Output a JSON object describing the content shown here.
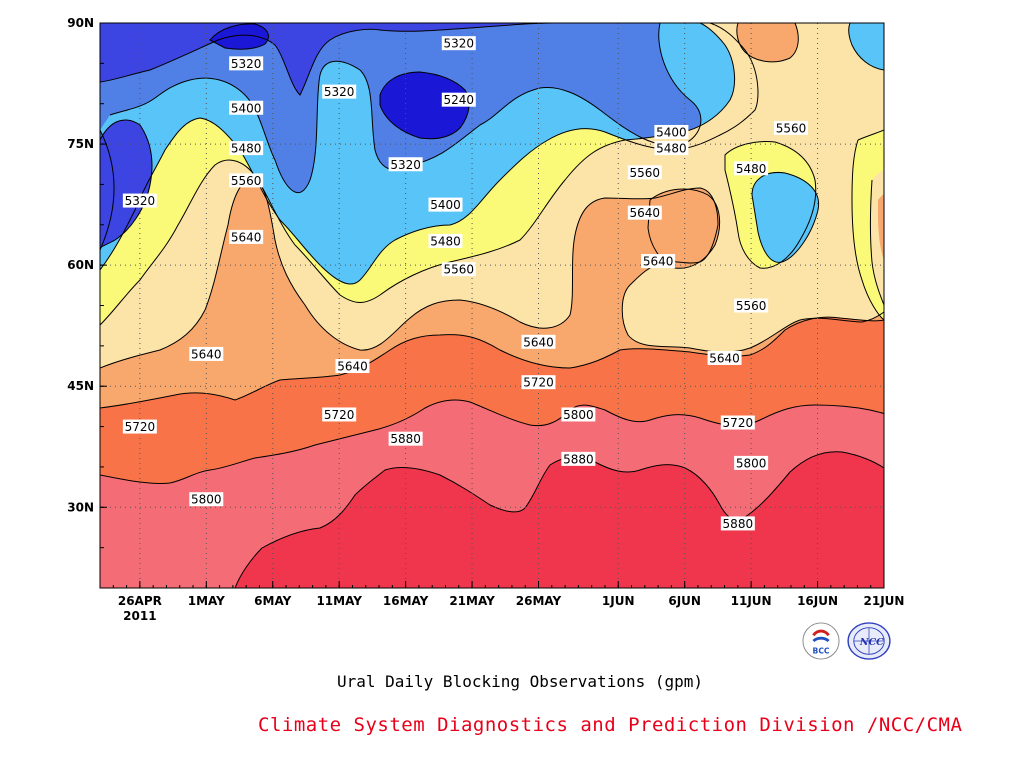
{
  "chart_data": {
    "type": "heatmap",
    "title": "Ural Daily Blocking Observations (gpm)",
    "xlabel": "",
    "ylabel": "",
    "x_tick_labels": [
      "26APR",
      "1MAY",
      "6MAY",
      "11MAY",
      "16MAY",
      "21MAY",
      "26MAY",
      "1JUN",
      "6JUN",
      "11JUN",
      "16JUN",
      "21JUN"
    ],
    "x_tick_year_label": "2011",
    "x_dates": [
      "2011-04-26",
      "2011-05-01",
      "2011-05-06",
      "2011-05-11",
      "2011-05-16",
      "2011-05-21",
      "2011-05-26",
      "2011-06-01",
      "2011-06-06",
      "2011-06-11",
      "2011-06-16",
      "2011-06-21"
    ],
    "xlim": [
      "2011-04-23",
      "2011-06-21"
    ],
    "y_tick_labels": [
      "30N",
      "45N",
      "60N",
      "75N",
      "90N"
    ],
    "y_ticks": [
      30,
      45,
      60,
      75,
      90
    ],
    "ylim": [
      20,
      90
    ],
    "contour_levels": [
      5240,
      5320,
      5400,
      5480,
      5560,
      5640,
      5720,
      5800,
      5880
    ],
    "contour_labels": [
      {
        "text": "5320",
        "date": "2011-05-04",
        "lat": 85
      },
      {
        "text": "5400",
        "date": "2011-05-04",
        "lat": 79.5
      },
      {
        "text": "5480",
        "date": "2011-05-04",
        "lat": 74.5
      },
      {
        "text": "5560",
        "date": "2011-05-04",
        "lat": 70.5
      },
      {
        "text": "5640",
        "date": "2011-05-04",
        "lat": 63.5
      },
      {
        "text": "5320",
        "date": "2011-04-26",
        "lat": 68
      },
      {
        "text": "5640",
        "date": "2011-05-01",
        "lat": 49
      },
      {
        "text": "5720",
        "date": "2011-04-26",
        "lat": 40
      },
      {
        "text": "5800",
        "date": "2011-05-01",
        "lat": 31
      },
      {
        "text": "5320",
        "date": "2011-05-11",
        "lat": 81.5
      },
      {
        "text": "5640",
        "date": "2011-05-12",
        "lat": 47.5
      },
      {
        "text": "5720",
        "date": "2011-05-11",
        "lat": 41.5
      },
      {
        "text": "5320",
        "date": "2011-05-16",
        "lat": 72.5
      },
      {
        "text": "5880",
        "date": "2011-05-16",
        "lat": 38.5
      },
      {
        "text": "5320",
        "date": "2011-05-20",
        "lat": 87.5
      },
      {
        "text": "5240",
        "date": "2011-05-20",
        "lat": 80.5
      },
      {
        "text": "5400",
        "date": "2011-05-19",
        "lat": 67.5
      },
      {
        "text": "5480",
        "date": "2011-05-19",
        "lat": 63
      },
      {
        "text": "5560",
        "date": "2011-05-20",
        "lat": 59.5
      },
      {
        "text": "5640",
        "date": "2011-05-26",
        "lat": 50.5
      },
      {
        "text": "5720",
        "date": "2011-05-26",
        "lat": 45.5
      },
      {
        "text": "5800",
        "date": "2011-05-29",
        "lat": 41.5
      },
      {
        "text": "5880",
        "date": "2011-05-29",
        "lat": 36
      },
      {
        "text": "5400",
        "date": "2011-06-05",
        "lat": 76.5
      },
      {
        "text": "5480",
        "date": "2011-06-05",
        "lat": 74.5
      },
      {
        "text": "5560",
        "date": "2011-06-03",
        "lat": 71.5
      },
      {
        "text": "5640",
        "date": "2011-06-03",
        "lat": 66.5
      },
      {
        "text": "5640",
        "date": "2011-06-04",
        "lat": 60.5
      },
      {
        "text": "5560",
        "date": "2011-06-14",
        "lat": 77
      },
      {
        "text": "5480",
        "date": "2011-06-11",
        "lat": 72
      },
      {
        "text": "5560",
        "date": "2011-06-11",
        "lat": 55
      },
      {
        "text": "5640",
        "date": "2011-06-09",
        "lat": 48.5
      },
      {
        "text": "5720",
        "date": "2011-06-10",
        "lat": 40.5
      },
      {
        "text": "5800",
        "date": "2011-06-11",
        "lat": 35.5
      },
      {
        "text": "5880",
        "date": "2011-06-10",
        "lat": 28
      }
    ],
    "band_colors": [
      "#1a17d6",
      "#3c44e2",
      "#5080e6",
      "#58c4f8",
      "#fafa78",
      "#fce4a8",
      "#f8a86c",
      "#f87448",
      "#f46c76",
      "#f0364c"
    ],
    "grid": true,
    "legend": "none"
  },
  "caption": {
    "subtitle": "Ural Daily Blocking Observations (gpm)",
    "credit": "Climate System Diagnostics and Prediction Division /NCC/CMA"
  },
  "logos": [
    {
      "icon": "bcc-logo",
      "text": "BCC"
    },
    {
      "icon": "ncc-logo",
      "text": "NCC"
    }
  ]
}
